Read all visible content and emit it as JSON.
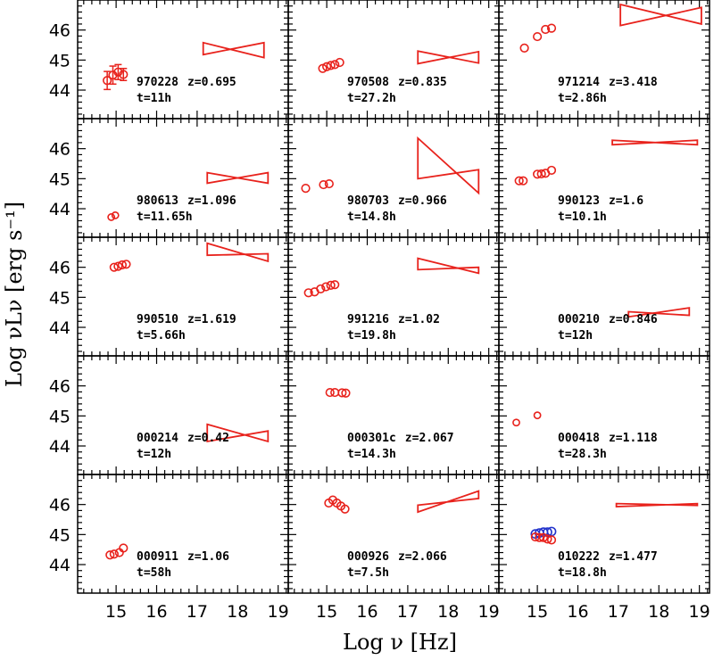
{
  "chart_data": {
    "type": "scatter",
    "xlabel": "Log ν  [Hz]",
    "ylabel": "Log νLν  [erg s⁻¹]",
    "xlim": [
      14.05,
      19.25
    ],
    "ylim": [
      43.05,
      47.0
    ],
    "xticks": [
      "15",
      "16",
      "17",
      "18",
      "19"
    ],
    "yticks": [
      "44",
      "45",
      "46"
    ],
    "grid": false,
    "colors": {
      "optical": "#e8221c",
      "xray": "#e8221c",
      "alt": "#2233cc"
    },
    "panels": [
      {
        "id": "970228",
        "z": "z=0.695",
        "t": "t=11h",
        "optical": [
          [
            14.78,
            44.32
          ],
          [
            14.92,
            44.5
          ],
          [
            15.05,
            44.6
          ],
          [
            15.18,
            44.52
          ]
        ],
        "errors": [
          0.3,
          0.3,
          0.25,
          0.2
        ],
        "xray": {
          "x": [
            17.15,
            18.65
          ],
          "low": [
            45.18,
            45.08
          ],
          "high": [
            45.58,
            45.58
          ]
        }
      },
      {
        "id": "970508",
        "z": "z=0.835",
        "t": "t=27.2h",
        "optical": [
          [
            14.9,
            44.72
          ],
          [
            15.0,
            44.78
          ],
          [
            15.1,
            44.82
          ],
          [
            15.2,
            44.85
          ],
          [
            15.32,
            44.92
          ]
        ],
        "xray": {
          "x": [
            17.25,
            18.75
          ],
          "low": [
            44.88,
            44.9
          ],
          "high": [
            45.3,
            45.28
          ]
        }
      },
      {
        "id": "971214",
        "z": "z=3.418",
        "t": "t=2.86h",
        "optical": [
          [
            14.68,
            45.4
          ],
          [
            15.0,
            45.78
          ],
          [
            15.2,
            46.02
          ],
          [
            15.35,
            46.06
          ]
        ],
        "xray": {
          "x": [
            17.05,
            19.05
          ],
          "low": [
            46.15,
            46.2
          ],
          "high": [
            46.85,
            46.75
          ]
        }
      },
      {
        "id": "980613",
        "z": "z=1.096",
        "t": "t=11.65h",
        "optical": [
          [
            14.88,
            43.72
          ],
          [
            14.98,
            43.78
          ]
        ],
        "xray": {
          "x": [
            17.25,
            18.75
          ],
          "low": [
            44.85,
            44.85
          ],
          "high": [
            45.2,
            45.2
          ]
        }
      },
      {
        "id": "980703",
        "z": "z=0.966",
        "t": "t=14.8h",
        "optical": [
          [
            14.48,
            44.68
          ],
          [
            14.92,
            44.8
          ],
          [
            15.06,
            44.83
          ]
        ],
        "xray": {
          "x": [
            17.25,
            18.75
          ],
          "low": [
            45.0,
            44.52
          ],
          "high": [
            46.35,
            45.3
          ]
        }
      },
      {
        "id": "990123",
        "z": "z=1.6",
        "t": "t=10.1h",
        "optical": [
          [
            14.55,
            44.93
          ],
          [
            14.65,
            44.93
          ],
          [
            15.0,
            45.15
          ],
          [
            15.1,
            45.16
          ],
          [
            15.2,
            45.18
          ],
          [
            15.35,
            45.28
          ]
        ],
        "xray": {
          "x": [
            16.85,
            18.95
          ],
          "low": [
            46.13,
            46.13
          ],
          "high": [
            46.28,
            46.28
          ]
        }
      },
      {
        "id": "990510",
        "z": "z=1.619",
        "t": "t=5.66h",
        "optical": [
          [
            14.95,
            46.0
          ],
          [
            15.05,
            46.03
          ],
          [
            15.15,
            46.08
          ],
          [
            15.25,
            46.1
          ]
        ],
        "xray": {
          "x": [
            17.25,
            18.75
          ],
          "low": [
            46.4,
            46.2
          ],
          "high": [
            46.8,
            46.45
          ]
        }
      },
      {
        "id": "991216",
        "z": "z=1.02",
        "t": "t=19.8h",
        "optical": [
          [
            14.55,
            45.15
          ],
          [
            14.7,
            45.18
          ],
          [
            14.85,
            45.28
          ],
          [
            14.98,
            45.35
          ],
          [
            15.1,
            45.4
          ],
          [
            15.2,
            45.42
          ]
        ],
        "xray": {
          "x": [
            17.25,
            18.75
          ],
          "low": [
            45.92,
            45.8
          ],
          "high": [
            46.3,
            46.0
          ]
        }
      },
      {
        "id": "000210",
        "z": "z=0.846",
        "t": "t=12h",
        "optical": [],
        "xray": {
          "x": [
            17.25,
            18.75
          ],
          "low": [
            44.35,
            44.4
          ],
          "high": [
            44.52,
            44.65
          ]
        }
      },
      {
        "id": "000214",
        "z": "z=0.42",
        "t": "t=12h",
        "optical": [],
        "xray": {
          "x": [
            17.25,
            18.75
          ],
          "low": [
            44.15,
            44.15
          ],
          "high": [
            44.72,
            44.5
          ]
        }
      },
      {
        "id": "000301c",
        "z": "z=2.067",
        "t": "t=14.3h",
        "optical": [
          [
            15.08,
            45.78
          ],
          [
            15.2,
            45.78
          ],
          [
            15.38,
            45.77
          ],
          [
            15.47,
            45.76
          ]
        ],
        "xray": null
      },
      {
        "id": "000418",
        "z": "z=1.118",
        "t": "t=28.3h",
        "optical": [
          [
            14.48,
            44.78
          ],
          [
            15.0,
            45.02
          ]
        ],
        "xray": null
      },
      {
        "id": "000911",
        "z": "z=1.06",
        "t": "t=58h",
        "optical": [
          [
            14.85,
            44.32
          ],
          [
            14.95,
            44.35
          ],
          [
            15.08,
            44.4
          ],
          [
            15.18,
            44.55
          ]
        ],
        "xray": null
      },
      {
        "id": "000926",
        "z": "z=2.066",
        "t": "t=7.5h",
        "optical": [
          [
            15.05,
            46.05
          ],
          [
            15.15,
            46.15
          ],
          [
            15.25,
            46.05
          ],
          [
            15.35,
            45.95
          ],
          [
            15.45,
            45.85
          ]
        ],
        "xray": {
          "x": [
            17.25,
            18.75
          ],
          "low": [
            45.75,
            46.2
          ],
          "high": [
            45.98,
            46.45
          ]
        }
      },
      {
        "id": "010222",
        "z": "z=1.477",
        "t": "t=18.8h",
        "optical": [
          [
            14.95,
            44.92
          ],
          [
            15.05,
            44.9
          ],
          [
            15.15,
            44.9
          ],
          [
            15.25,
            44.85
          ],
          [
            15.35,
            44.82
          ]
        ],
        "optical_alt": [
          [
            14.95,
            45.02
          ],
          [
            15.05,
            45.05
          ],
          [
            15.15,
            45.08
          ],
          [
            15.25,
            45.08
          ],
          [
            15.35,
            45.1
          ]
        ],
        "xray": {
          "x": [
            16.95,
            18.95
          ],
          "low": [
            45.93,
            45.97
          ],
          "high": [
            46.03,
            46.03
          ]
        }
      }
    ]
  }
}
